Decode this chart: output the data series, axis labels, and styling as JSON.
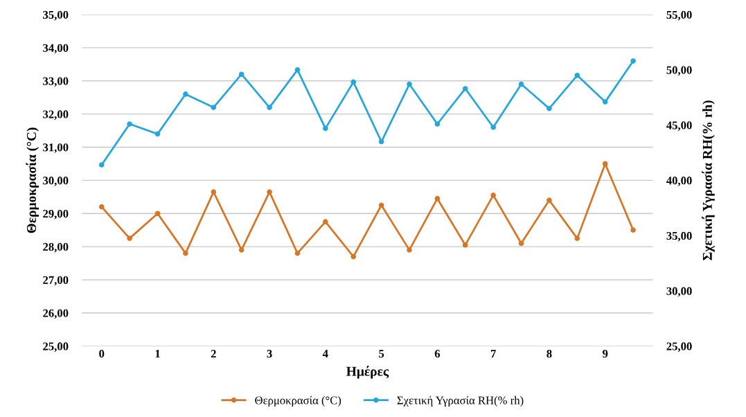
{
  "chart_data": {
    "type": "line",
    "xlabel": "Ημέρες",
    "ylabel": "Θερμοκρασία (°C)",
    "y2label": "Σχετική Υγρασία RH(% rh)",
    "x": [
      0,
      0.5,
      1,
      1.5,
      2,
      2.5,
      3,
      3.5,
      4,
      4.5,
      5,
      5.5,
      6,
      6.5,
      7,
      7.5,
      8,
      8.5,
      9,
      9.5
    ],
    "series": [
      {
        "name": "Θερμοκρασία (°C)",
        "color": "#d3782b",
        "values": [
          29.2,
          28.25,
          29.0,
          27.8,
          29.65,
          27.9,
          29.65,
          27.8,
          28.75,
          27.7,
          29.25,
          27.9,
          29.45,
          28.05,
          29.55,
          28.1,
          29.4,
          28.25,
          30.5,
          28.5
        ]
      },
      {
        "name": "Σχετική Υγρασία RH(% rh)",
        "color": "#2aa6d6",
        "axis": "y2",
        "values": [
          41.4,
          45.1,
          44.2,
          47.8,
          46.6,
          49.6,
          46.6,
          50.0,
          44.7,
          48.9,
          43.5,
          48.7,
          45.1,
          48.3,
          44.8,
          48.7,
          46.5,
          49.5,
          47.1,
          50.8
        ]
      }
    ],
    "xlim": [
      -0.35,
      9.85
    ],
    "xticks": [
      0,
      1,
      2,
      3,
      4,
      5,
      6,
      7,
      8,
      9
    ],
    "ylim": [
      25,
      35
    ],
    "yticks": [
      {
        "value": 25,
        "label": "25,00"
      },
      {
        "value": 26,
        "label": "26,00"
      },
      {
        "value": 27,
        "label": "27,00"
      },
      {
        "value": 28,
        "label": "28,00"
      },
      {
        "value": 29,
        "label": "29,00"
      },
      {
        "value": 30,
        "label": "30,00"
      },
      {
        "value": 31,
        "label": "31,00"
      },
      {
        "value": 32,
        "label": "32,00"
      },
      {
        "value": 33,
        "label": "33,00"
      },
      {
        "value": 34,
        "label": "34,00"
      },
      {
        "value": 35,
        "label": "35,00"
      }
    ],
    "y2lim": [
      25,
      55
    ],
    "y2ticks": [
      {
        "value": 25,
        "label": "25,00"
      },
      {
        "value": 30,
        "label": "30,00"
      },
      {
        "value": 35,
        "label": "35,00"
      },
      {
        "value": 40,
        "label": "40,00"
      },
      {
        "value": 45,
        "label": "45,00"
      },
      {
        "value": 50,
        "label": "50,00"
      },
      {
        "value": 55,
        "label": "55,00"
      }
    ],
    "grid": "y",
    "legend": "bottom",
    "marker": "circle",
    "line_style": "solid"
  }
}
